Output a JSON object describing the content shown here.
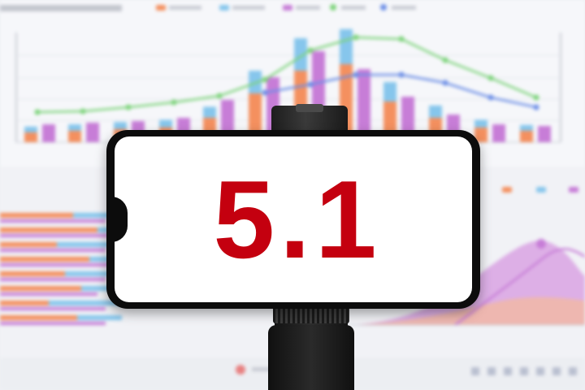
{
  "phone_screen": {
    "value": "5.1",
    "value_color": "#c4000f",
    "background_color": "#ffffff"
  },
  "background": {
    "description_colors": {
      "orange": "#f4905f",
      "light_blue": "#86c6ec",
      "purple": "#c77dd7",
      "green": "#7cd37a",
      "blue": "#6c8ee6"
    }
  },
  "device": {
    "body_color": "#0c0c0c",
    "mount_icon": "tripod-mount-icon"
  }
}
